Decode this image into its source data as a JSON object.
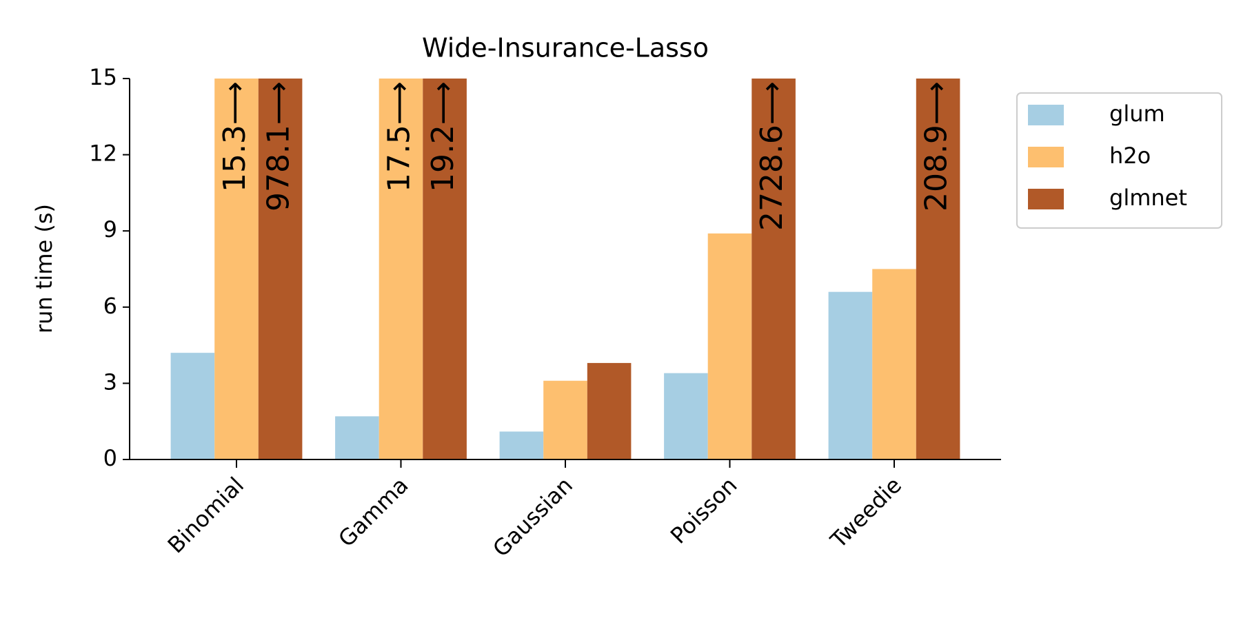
{
  "chart_data": {
    "type": "bar",
    "title": "Wide-Insurance-Lasso",
    "y_label": "run time (s)",
    "categories": [
      "Binomial",
      "Gamma",
      "Gaussian",
      "Poisson",
      "Tweedie"
    ],
    "series": [
      {
        "name": "glum",
        "color": "#a6cee3",
        "values": [
          4.2,
          1.7,
          1.1,
          3.4,
          6.6
        ]
      },
      {
        "name": "h2o",
        "color": "#fdbf6f",
        "values": [
          15.3,
          17.5,
          3.1,
          8.9,
          7.5
        ],
        "value_labels": [
          "15.3⟶",
          "17.5⟶",
          null,
          null,
          null
        ]
      },
      {
        "name": "glmnet",
        "color": "#b15928",
        "values": [
          978.1,
          19.2,
          3.8,
          2728.6,
          208.9
        ],
        "value_labels": [
          "978.1⟶",
          "19.2⟶",
          null,
          "2728.6⟶",
          "208.9⟶"
        ]
      }
    ],
    "ylim": [
      0,
      15
    ],
    "yticks": [
      0,
      3,
      6,
      9,
      12,
      15
    ],
    "legend": "upper right outside"
  }
}
